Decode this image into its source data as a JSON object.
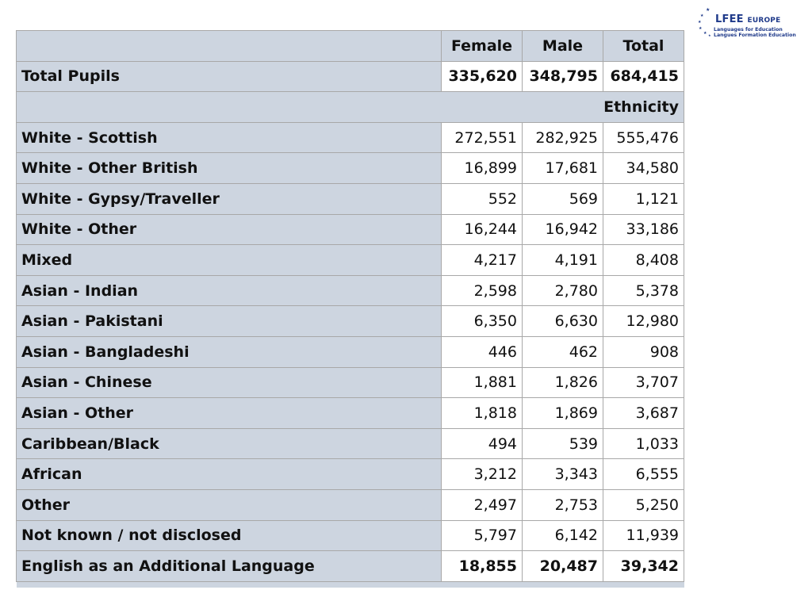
{
  "logo": {
    "name": "LFEE",
    "name_suffix": "EUROPE",
    "line1": "Languages for Education",
    "line2": "Langues Formation Education"
  },
  "table": {
    "headers": [
      "",
      "Female",
      "Male",
      "Total"
    ],
    "total_row": {
      "label": "Total Pupils",
      "female": "335,620",
      "male": "348,795",
      "total": "684,415"
    },
    "section_label": "Ethnicity",
    "rows": [
      {
        "label": "White - Scottish",
        "female": "272,551",
        "male": "282,925",
        "total": "555,476"
      },
      {
        "label": "White - Other British",
        "female": "16,899",
        "male": "17,681",
        "total": "34,580"
      },
      {
        "label": "White - Gypsy/Traveller",
        "female": "552",
        "male": "569",
        "total": "1,121"
      },
      {
        "label": "White - Other",
        "female": "16,244",
        "male": "16,942",
        "total": "33,186"
      },
      {
        "label": "Mixed",
        "female": "4,217",
        "male": "4,191",
        "total": "8,408"
      },
      {
        "label": "Asian - Indian",
        "female": "2,598",
        "male": "2,780",
        "total": "5,378"
      },
      {
        "label": "Asian - Pakistani",
        "female": "6,350",
        "male": "6,630",
        "total": "12,980"
      },
      {
        "label": "Asian - Bangladeshi",
        "female": "446",
        "male": "462",
        "total": "908"
      },
      {
        "label": "Asian - Chinese",
        "female": "1,881",
        "male": "1,826",
        "total": "3,707"
      },
      {
        "label": "Asian - Other",
        "female": "1,818",
        "male": "1,869",
        "total": "3,687"
      },
      {
        "label": "Caribbean/Black",
        "female": "494",
        "male": "539",
        "total": "1,033"
      },
      {
        "label": "African",
        "female": "3,212",
        "male": "3,343",
        "total": "6,555"
      },
      {
        "label": "Other",
        "female": "2,497",
        "male": "2,753",
        "total": "5,250"
      },
      {
        "label": "Not known / not disclosed",
        "female": "5,797",
        "male": "6,142",
        "total": "11,939"
      }
    ],
    "eal_row": {
      "label": "English as an Additional Language",
      "female": "18,855",
      "male": "20,487",
      "total": "39,342"
    }
  }
}
